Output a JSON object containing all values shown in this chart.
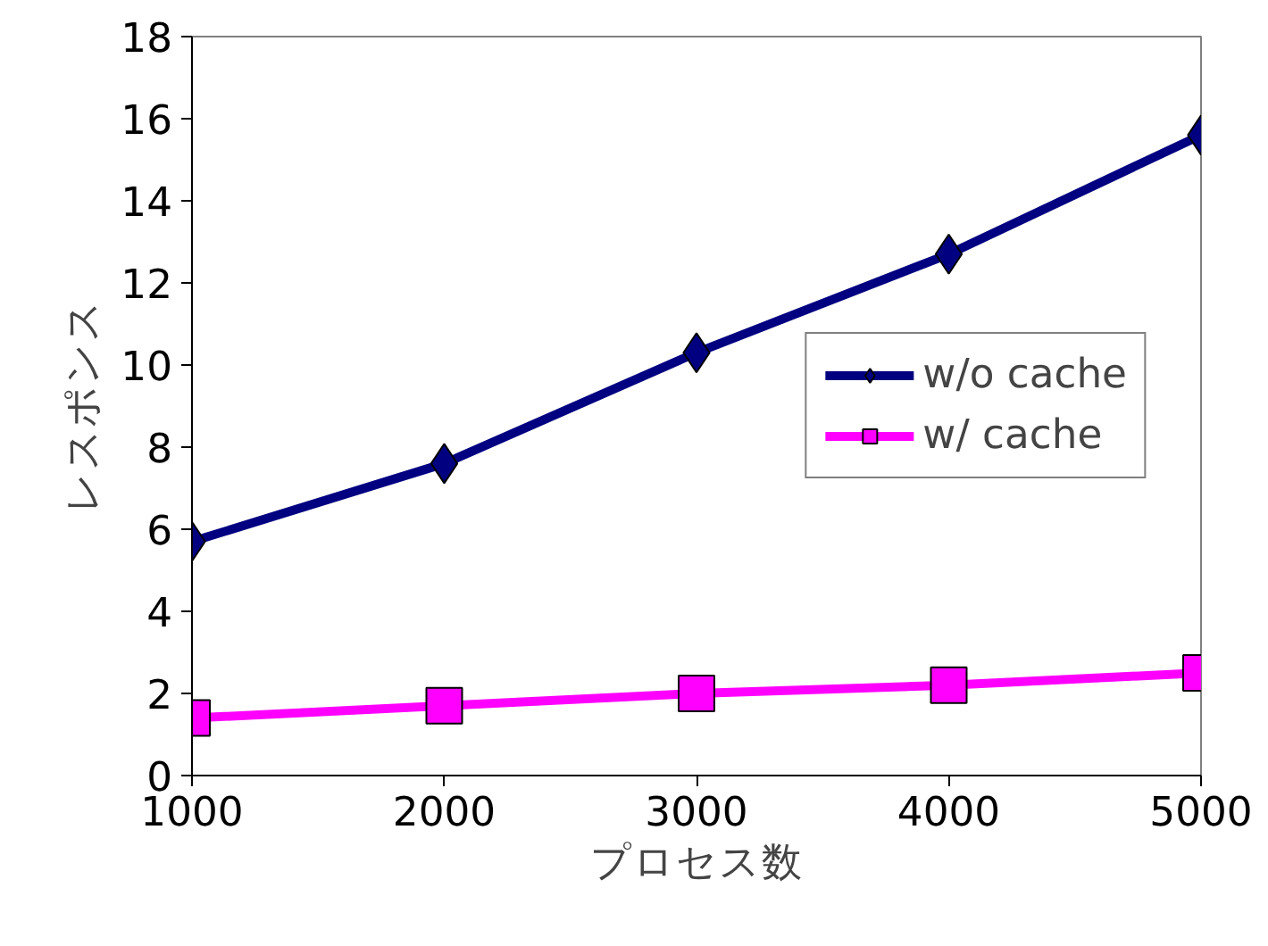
{
  "chart_data": {
    "type": "line",
    "xlabel": "プロセス数",
    "ylabel": "レスポンス",
    "x": [
      1000,
      2000,
      3000,
      4000,
      5000
    ],
    "series": [
      {
        "name": "w/o cache",
        "color": "#000080",
        "values": [
          5.7,
          7.6,
          10.3,
          12.7,
          15.6
        ],
        "marker": "diamond"
      },
      {
        "name": "w/ cache",
        "color": "#ff00ff",
        "values": [
          1.4,
          1.7,
          2.0,
          2.2,
          2.5
        ],
        "marker": "square"
      }
    ],
    "xlim": [
      1000,
      5000
    ],
    "xticks": [
      1000,
      2000,
      3000,
      4000,
      5000
    ],
    "ylim": [
      0,
      18
    ],
    "yticks": [
      0,
      2,
      4,
      6,
      8,
      10,
      12,
      14,
      16,
      18
    ],
    "grid": false,
    "legend": "right",
    "line_style": "solid"
  }
}
